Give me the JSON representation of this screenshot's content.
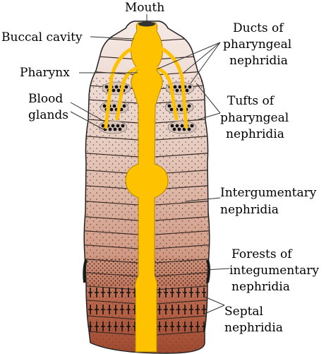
{
  "figure": {
    "labels": {
      "mouth": "Mouth",
      "buccal_cavity": "Buccal cavity",
      "pharynx": "Pharynx",
      "blood_glands": [
        "Blood",
        "glands"
      ],
      "ducts": [
        "Ducts of",
        "pharyngeal",
        "nephridia"
      ],
      "tufts": [
        "Tufts of",
        "pharyngeal",
        "nephridia"
      ],
      "integumentary": [
        "Intergumentary",
        "nephridia"
      ],
      "forests": [
        "Forests of",
        "integumentary",
        "nephridia"
      ],
      "septal": [
        "Septal",
        "nephridia"
      ]
    },
    "colors": {
      "gut": "#FFC200",
      "body_top": "#F3E4DE",
      "body_mid": "#D9A892",
      "body_bottom": "#A24D33",
      "outline": "#222222",
      "dots": "#2A1A14"
    }
  }
}
